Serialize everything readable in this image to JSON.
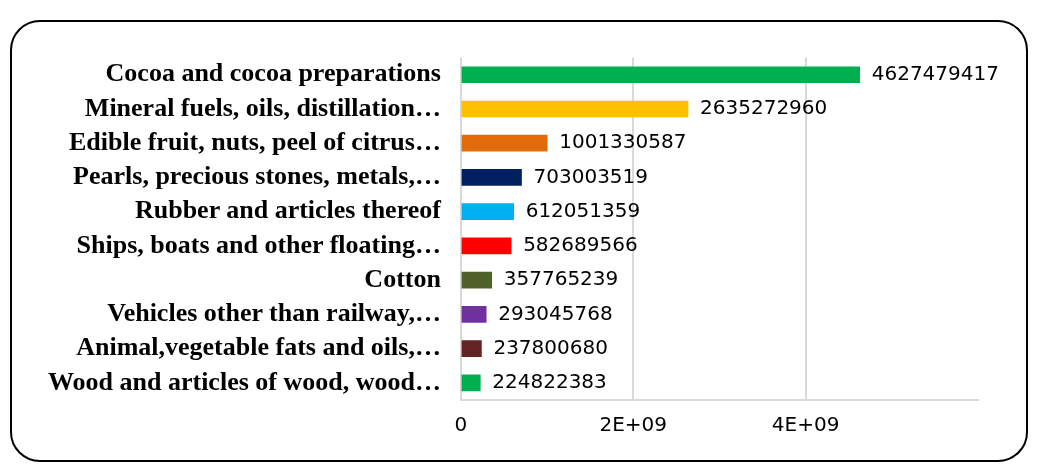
{
  "chart_data": {
    "type": "bar",
    "orientation": "horizontal",
    "categories": [
      "Cocoa and cocoa preparations",
      "Mineral fuels, oils, distillation…",
      "Edible fruit, nuts, peel of citrus…",
      "Pearls, precious stones, metals,…",
      "Rubber and articles thereof",
      "Ships, boats and other floating…",
      "Cotton",
      "Vehicles other than railway,…",
      "Animal,vegetable fats and oils,…",
      "Wood and articles of wood, wood…"
    ],
    "values": [
      4627479417,
      2635272960,
      1001330587,
      703003519,
      612051359,
      582689566,
      357765239,
      293045768,
      237800680,
      224822383
    ],
    "colors": [
      "#00b050",
      "#ffc000",
      "#e36c0a",
      "#002060",
      "#00b0f0",
      "#ff0000",
      "#4f6228",
      "#7030a0",
      "#632523",
      "#00b050"
    ],
    "xlim": [
      0,
      6000000000
    ],
    "xticks": [
      0,
      {
        "value": 2000000000,
        "label": "2E+09"
      },
      {
        "value": 4000000000,
        "label": "4E+09"
      }
    ],
    "grid": "x",
    "data_labels": true,
    "legend": false
  }
}
